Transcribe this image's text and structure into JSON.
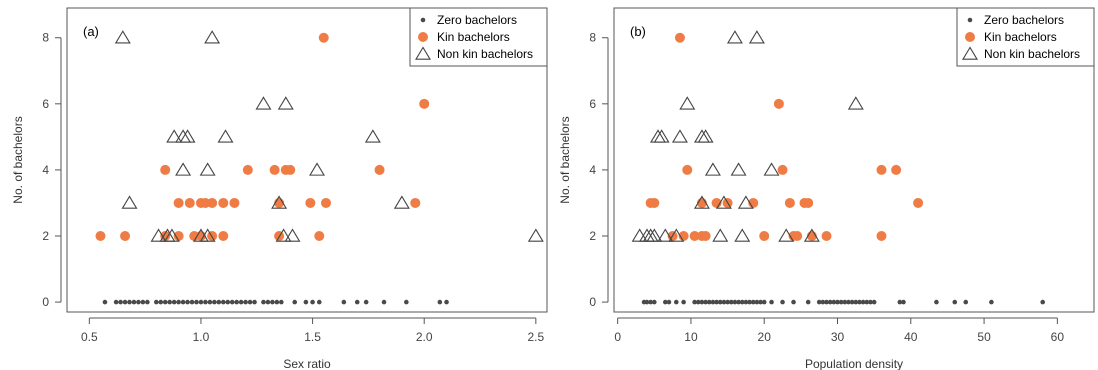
{
  "colors": {
    "zero": "#4a4a4a",
    "kin": "#f07c45",
    "nonkin": "#444444",
    "axis": "#555555"
  },
  "chart_data": [
    {
      "type": "scatter",
      "panel_label": "(a)",
      "xlabel": "Sex ratio",
      "ylabel": "No. of bachelors",
      "xlim": [
        0.4,
        2.55
      ],
      "ylim": [
        -0.3,
        8.9
      ],
      "xticks": [
        0.5,
        1.0,
        1.5,
        2.0,
        2.5
      ],
      "xtick_labels": [
        "0.5",
        "1.0",
        "1.5",
        "2.0",
        "2.5"
      ],
      "yticks": [
        0,
        2,
        4,
        6,
        8
      ],
      "ytick_labels": [
        "0",
        "2",
        "4",
        "6",
        "8"
      ],
      "legend_position": "top-right",
      "series": [
        {
          "name": "Zero bachelors",
          "marker": "small-dot",
          "points": [
            [
              0.57,
              0
            ],
            [
              0.62,
              0
            ],
            [
              0.64,
              0
            ],
            [
              0.66,
              0
            ],
            [
              0.68,
              0
            ],
            [
              0.7,
              0
            ],
            [
              0.72,
              0
            ],
            [
              0.74,
              0
            ],
            [
              0.76,
              0
            ],
            [
              0.8,
              0
            ],
            [
              0.82,
              0
            ],
            [
              0.84,
              0
            ],
            [
              0.86,
              0
            ],
            [
              0.88,
              0
            ],
            [
              0.9,
              0
            ],
            [
              0.92,
              0
            ],
            [
              0.94,
              0
            ],
            [
              0.96,
              0
            ],
            [
              0.98,
              0
            ],
            [
              1.0,
              0
            ],
            [
              1.02,
              0
            ],
            [
              1.04,
              0
            ],
            [
              1.06,
              0
            ],
            [
              1.08,
              0
            ],
            [
              1.1,
              0
            ],
            [
              1.12,
              0
            ],
            [
              1.14,
              0
            ],
            [
              1.16,
              0
            ],
            [
              1.18,
              0
            ],
            [
              1.2,
              0
            ],
            [
              1.22,
              0
            ],
            [
              1.24,
              0
            ],
            [
              1.28,
              0
            ],
            [
              1.3,
              0
            ],
            [
              1.32,
              0
            ],
            [
              1.34,
              0
            ],
            [
              1.36,
              0
            ],
            [
              1.42,
              0
            ],
            [
              1.47,
              0
            ],
            [
              1.5,
              0
            ],
            [
              1.53,
              0
            ],
            [
              1.64,
              0
            ],
            [
              1.7,
              0
            ],
            [
              1.74,
              0
            ],
            [
              1.82,
              0
            ],
            [
              1.92,
              0
            ],
            [
              2.07,
              0
            ],
            [
              2.1,
              0
            ]
          ]
        },
        {
          "name": "Kin bachelors",
          "marker": "filled-circle",
          "points": [
            [
              0.55,
              2
            ],
            [
              0.66,
              2
            ],
            [
              0.84,
              2
            ],
            [
              0.9,
              2
            ],
            [
              0.97,
              2
            ],
            [
              1.0,
              2
            ],
            [
              1.05,
              2
            ],
            [
              1.1,
              2
            ],
            [
              1.35,
              2
            ],
            [
              1.53,
              2
            ],
            [
              0.84,
              4
            ],
            [
              0.9,
              3
            ],
            [
              0.95,
              3
            ],
            [
              1.0,
              3
            ],
            [
              1.02,
              3
            ],
            [
              1.05,
              3
            ],
            [
              1.1,
              3
            ],
            [
              1.15,
              3
            ],
            [
              1.21,
              4
            ],
            [
              1.33,
              4
            ],
            [
              1.38,
              4
            ],
            [
              1.4,
              4
            ],
            [
              1.35,
              3
            ],
            [
              1.49,
              3
            ],
            [
              1.56,
              3
            ],
            [
              1.8,
              4
            ],
            [
              1.96,
              3
            ],
            [
              2.0,
              6
            ],
            [
              1.55,
              8
            ]
          ]
        },
        {
          "name": "Non kin bachelors",
          "marker": "open-triangle",
          "points": [
            [
              0.65,
              8
            ],
            [
              1.05,
              8
            ],
            [
              1.28,
              6
            ],
            [
              1.38,
              6
            ],
            [
              0.68,
              3
            ],
            [
              0.81,
              2
            ],
            [
              0.85,
              2
            ],
            [
              0.87,
              2
            ],
            [
              1.0,
              2
            ],
            [
              1.03,
              2
            ],
            [
              1.37,
              2
            ],
            [
              1.41,
              2
            ],
            [
              0.88,
              5
            ],
            [
              0.92,
              5
            ],
            [
              0.94,
              5
            ],
            [
              1.11,
              5
            ],
            [
              0.92,
              4
            ],
            [
              1.03,
              4
            ],
            [
              1.35,
              3
            ],
            [
              1.52,
              4
            ],
            [
              1.77,
              5
            ],
            [
              1.9,
              3
            ],
            [
              2.5,
              2
            ]
          ]
        }
      ]
    },
    {
      "type": "scatter",
      "panel_label": "(b)",
      "xlabel": "Population density",
      "ylabel": "No. of bachelors",
      "xlim": [
        -0.5,
        65
      ],
      "ylim": [
        -0.3,
        8.9
      ],
      "xticks": [
        0,
        10,
        20,
        30,
        40,
        50,
        60
      ],
      "xtick_labels": [
        "0",
        "10",
        "20",
        "30",
        "40",
        "50",
        "60"
      ],
      "yticks": [
        0,
        2,
        4,
        6,
        8
      ],
      "ytick_labels": [
        "0",
        "2",
        "4",
        "6",
        "8"
      ],
      "legend_position": "top-right",
      "series": [
        {
          "name": "Zero bachelors",
          "marker": "small-dot",
          "points": [
            [
              3.6,
              0
            ],
            [
              4.0,
              0
            ],
            [
              4.5,
              0
            ],
            [
              5.0,
              0
            ],
            [
              6.5,
              0
            ],
            [
              7.0,
              0
            ],
            [
              8.0,
              0
            ],
            [
              9.0,
              0
            ],
            [
              10.5,
              0
            ],
            [
              11.0,
              0
            ],
            [
              11.5,
              0
            ],
            [
              12.0,
              0
            ],
            [
              12.5,
              0
            ],
            [
              13.0,
              0
            ],
            [
              13.5,
              0
            ],
            [
              14.0,
              0
            ],
            [
              14.5,
              0
            ],
            [
              15.0,
              0
            ],
            [
              15.5,
              0
            ],
            [
              16.0,
              0
            ],
            [
              16.5,
              0
            ],
            [
              17.0,
              0
            ],
            [
              17.5,
              0
            ],
            [
              18.0,
              0
            ],
            [
              18.5,
              0
            ],
            [
              19.0,
              0
            ],
            [
              19.5,
              0
            ],
            [
              20.0,
              0
            ],
            [
              21.0,
              0
            ],
            [
              22.5,
              0
            ],
            [
              24.0,
              0
            ],
            [
              26.0,
              0
            ],
            [
              27.5,
              0
            ],
            [
              28.0,
              0
            ],
            [
              28.5,
              0
            ],
            [
              29.0,
              0
            ],
            [
              29.5,
              0
            ],
            [
              30.0,
              0
            ],
            [
              30.5,
              0
            ],
            [
              31.0,
              0
            ],
            [
              31.5,
              0
            ],
            [
              32.0,
              0
            ],
            [
              32.5,
              0
            ],
            [
              33.0,
              0
            ],
            [
              33.5,
              0
            ],
            [
              34.0,
              0
            ],
            [
              34.5,
              0
            ],
            [
              35.0,
              0
            ],
            [
              38.5,
              0
            ],
            [
              39.0,
              0
            ],
            [
              43.5,
              0
            ],
            [
              46.0,
              0
            ],
            [
              47.5,
              0
            ],
            [
              51.0,
              0
            ],
            [
              58.0,
              0
            ]
          ]
        },
        {
          "name": "Kin bachelors",
          "marker": "filled-circle",
          "points": [
            [
              8.5,
              8
            ],
            [
              22.0,
              6
            ],
            [
              9.5,
              4
            ],
            [
              22.5,
              4
            ],
            [
              36.0,
              4
            ],
            [
              38.0,
              4
            ],
            [
              4.5,
              3
            ],
            [
              5.0,
              3
            ],
            [
              11.5,
              3
            ],
            [
              13.5,
              3
            ],
            [
              15.0,
              3
            ],
            [
              18.5,
              3
            ],
            [
              23.5,
              3
            ],
            [
              25.5,
              3
            ],
            [
              26.0,
              3
            ],
            [
              41.0,
              3
            ],
            [
              7.5,
              2
            ],
            [
              9.0,
              2
            ],
            [
              10.5,
              2
            ],
            [
              11.5,
              2
            ],
            [
              12.0,
              2
            ],
            [
              20.0,
              2
            ],
            [
              24.0,
              2
            ],
            [
              24.5,
              2
            ],
            [
              26.5,
              2
            ],
            [
              28.5,
              2
            ],
            [
              36.0,
              2
            ]
          ]
        },
        {
          "name": "Non kin bachelors",
          "marker": "open-triangle",
          "points": [
            [
              16.0,
              8
            ],
            [
              19.0,
              8
            ],
            [
              9.5,
              6
            ],
            [
              32.5,
              6
            ],
            [
              5.5,
              5
            ],
            [
              6.0,
              5
            ],
            [
              8.5,
              5
            ],
            [
              11.5,
              5
            ],
            [
              12.0,
              5
            ],
            [
              13.0,
              4
            ],
            [
              16.5,
              4
            ],
            [
              21.0,
              4
            ],
            [
              11.5,
              3
            ],
            [
              14.5,
              3
            ],
            [
              17.5,
              3
            ],
            [
              3.0,
              2
            ],
            [
              4.0,
              2
            ],
            [
              4.5,
              2
            ],
            [
              5.0,
              2
            ],
            [
              6.5,
              2
            ],
            [
              8.0,
              2
            ],
            [
              14.0,
              2
            ],
            [
              17.0,
              2
            ],
            [
              23.0,
              2
            ],
            [
              26.5,
              2
            ]
          ]
        }
      ]
    }
  ]
}
